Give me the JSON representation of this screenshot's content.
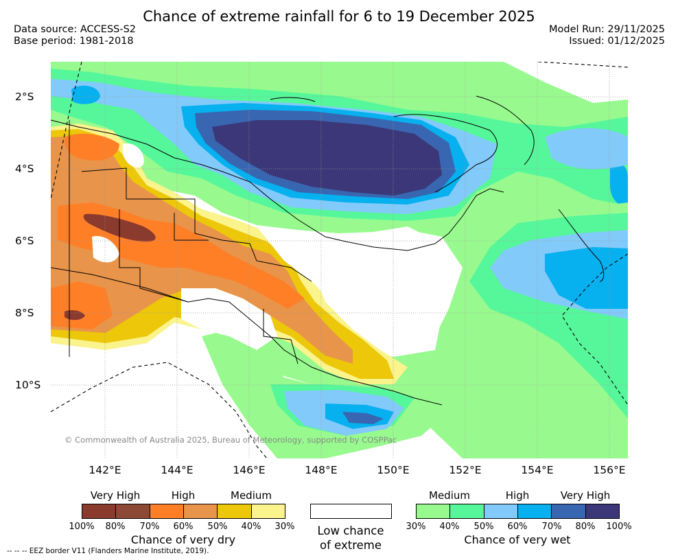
{
  "title": "Chance of extreme rainfall for 6 to 19 December 2025",
  "header": {
    "data_source": "Data source: ACCESS-S2",
    "base_period": "Base period: 1981-2018",
    "model_run": "Model Run: 29/11/2025",
    "issued": "Issued: 01/12/2025"
  },
  "map": {
    "lat_labels": [
      "2°S",
      "4°S",
      "6°S",
      "8°S",
      "10°S"
    ],
    "lon_labels": [
      "142°E",
      "144°E",
      "146°E",
      "148°E",
      "150°E",
      "152°E",
      "154°E",
      "156°E"
    ],
    "copyright": "© Commonwealth of Australia 2025, Bureau of Meteorology, supported by COSPPac",
    "colors": {
      "dry_100": "#8b3a2e",
      "dry_80": "#8c4a36",
      "dry_70": "#ff7f27",
      "dry_60": "#e8944a",
      "dry_50": "#ecc70a",
      "dry_40": "#fbf38c",
      "wet_30": "#98fa8e",
      "wet_40": "#56f79a",
      "wet_50": "#82cafa",
      "wet_60": "#07b0ee",
      "wet_70": "#3966b0",
      "wet_80": "#3b3778"
    }
  },
  "legend": {
    "dry": {
      "levels": [
        "Very High",
        "High",
        "Medium"
      ],
      "colors": [
        "#8b3a2e",
        "#8c4a36",
        "#ff7f27",
        "#e8944a",
        "#ecc70a",
        "#fbf38c"
      ],
      "ticks": [
        "100%",
        "80%",
        "70%",
        "60%",
        "50%",
        "40%",
        "30%"
      ],
      "caption": "Chance of very dry"
    },
    "low": {
      "line1": "Low chance",
      "line2": "of extreme"
    },
    "wet": {
      "levels": [
        "Medium",
        "High",
        "Very High"
      ],
      "colors": [
        "#98fa8e",
        "#56f79a",
        "#82cafa",
        "#07b0ee",
        "#3966b0",
        "#3b3778"
      ],
      "ticks": [
        "30%",
        "40%",
        "50%",
        "60%",
        "70%",
        "80%",
        "100%"
      ],
      "caption": "Chance of very wet"
    }
  },
  "footnote": "-- -- -- EEZ border V11 (Flanders Marine Institute, 2019)."
}
